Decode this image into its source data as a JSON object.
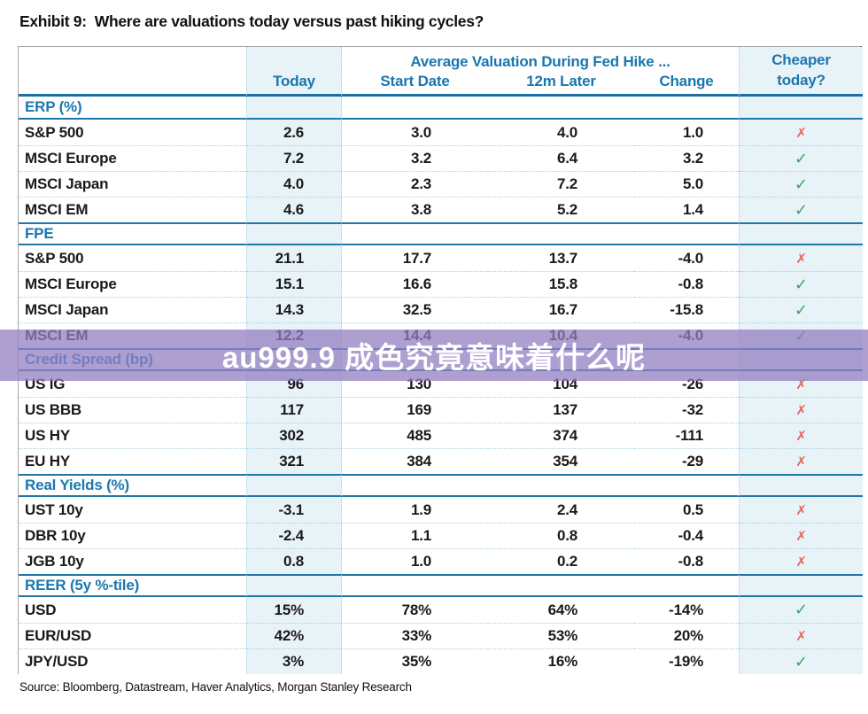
{
  "title": {
    "exhibit_label": "Exhibit 9:",
    "question": "Where are valuations today versus past hiking cycles?"
  },
  "header": {
    "group": "Average Valuation During Fed Hike ...",
    "today": "Today",
    "start_date": "Start Date",
    "later_12m": "12m Later",
    "change": "Change",
    "cheaper_line1": "Cheaper",
    "cheaper_line2": "today?"
  },
  "marks": {
    "check": "✓",
    "cross": "✗"
  },
  "colors": {
    "header_blue": "#1a77ae",
    "section_line_blue": "#2176a8",
    "shaded_column": "#e8f3f8",
    "check_green": "#3ba55c",
    "cross_red": "#e0685a",
    "watermark_purple": "rgba(147,127,194,0.75)"
  },
  "watermark": {
    "text": "au999.9 成色究竟意味着什么呢"
  },
  "source": "Source: Bloomberg, Datastream, Haver Analytics, Morgan Stanley Research",
  "chart_data": {
    "type": "table",
    "title": "Exhibit 9: Where are valuations today versus past hiking cycles?",
    "column_group_header": "Average Valuation During Fed Hike ...",
    "columns": [
      "",
      "Today",
      "Start Date",
      "12m Later",
      "Change",
      "Cheaper today?"
    ],
    "sections": [
      {
        "label": "ERP (%)",
        "rows": [
          {
            "name": "S&P 500",
            "today": "2.6",
            "start_date": "3.0",
            "later_12m": "4.0",
            "change": "1.0",
            "cheaper": false
          },
          {
            "name": "MSCI Europe",
            "today": "7.2",
            "start_date": "3.2",
            "later_12m": "6.4",
            "change": "3.2",
            "cheaper": true
          },
          {
            "name": "MSCI Japan",
            "today": "4.0",
            "start_date": "2.3",
            "later_12m": "7.2",
            "change": "5.0",
            "cheaper": true
          },
          {
            "name": "MSCI EM",
            "today": "4.6",
            "start_date": "3.8",
            "later_12m": "5.2",
            "change": "1.4",
            "cheaper": true
          }
        ]
      },
      {
        "label": "FPE",
        "rows": [
          {
            "name": "S&P 500",
            "today": "21.1",
            "start_date": "17.7",
            "later_12m": "13.7",
            "change": "-4.0",
            "cheaper": false
          },
          {
            "name": "MSCI Europe",
            "today": "15.1",
            "start_date": "16.6",
            "later_12m": "15.8",
            "change": "-0.8",
            "cheaper": true
          },
          {
            "name": "MSCI Japan",
            "today": "14.3",
            "start_date": "32.5",
            "later_12m": "16.7",
            "change": "-15.8",
            "cheaper": true
          },
          {
            "name": "MSCI EM",
            "today": "12.2",
            "start_date": "14.4",
            "later_12m": "10.4",
            "change": "-4.0",
            "cheaper": true
          }
        ]
      },
      {
        "label": "Credit Spread (bp)",
        "rows": [
          {
            "name": "US IG",
            "today": "96",
            "start_date": "130",
            "later_12m": "104",
            "change": "-26",
            "cheaper": false
          },
          {
            "name": "US BBB",
            "today": "117",
            "start_date": "169",
            "later_12m": "137",
            "change": "-32",
            "cheaper": false
          },
          {
            "name": "US HY",
            "today": "302",
            "start_date": "485",
            "later_12m": "374",
            "change": "-111",
            "cheaper": false
          },
          {
            "name": "EU HY",
            "today": "321",
            "start_date": "384",
            "later_12m": "354",
            "change": "-29",
            "cheaper": false
          }
        ]
      },
      {
        "label": "Real Yields (%)",
        "rows": [
          {
            "name": "UST 10y",
            "today": "-3.1",
            "start_date": "1.9",
            "later_12m": "2.4",
            "change": "0.5",
            "cheaper": false
          },
          {
            "name": "DBR 10y",
            "today": "-2.4",
            "start_date": "1.1",
            "later_12m": "0.8",
            "change": "-0.4",
            "cheaper": false
          },
          {
            "name": "JGB 10y",
            "today": "0.8",
            "start_date": "1.0",
            "later_12m": "0.2",
            "change": "-0.8",
            "cheaper": false
          }
        ]
      },
      {
        "label": "REER (5y %-tile)",
        "rows": [
          {
            "name": "USD",
            "today": "15%",
            "start_date": "78%",
            "later_12m": "64%",
            "change": "-14%",
            "cheaper": true
          },
          {
            "name": "EUR/USD",
            "today": "42%",
            "start_date": "33%",
            "later_12m": "53%",
            "change": "20%",
            "cheaper": false
          },
          {
            "name": "JPY/USD",
            "today": "3%",
            "start_date": "35%",
            "later_12m": "16%",
            "change": "-19%",
            "cheaper": true
          }
        ]
      }
    ]
  }
}
